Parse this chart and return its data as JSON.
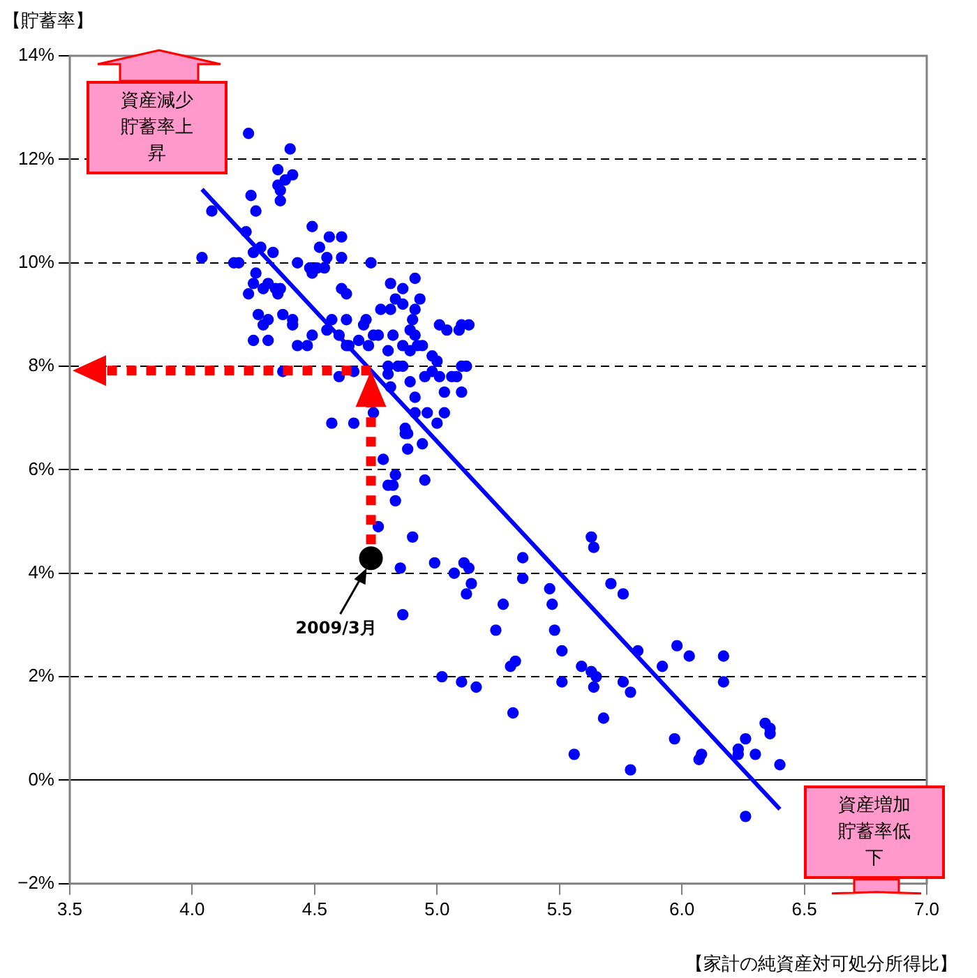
{
  "chart_data": {
    "type": "scatter",
    "xlabel": "【家計の純資産対可処分所得比】",
    "ylabel": "【貯蓄率】",
    "xlim": [
      3.5,
      7.0
    ],
    "xticks": [
      3.5,
      {
        "value": 4,
        "label": "4.0"
      },
      4.5,
      {
        "value": 5,
        "label": "5.0"
      },
      5.5,
      {
        "value": 6,
        "label": "6.0"
      },
      6.5,
      {
        "value": 7,
        "label": "7.0"
      }
    ],
    "ylim": [
      -2,
      14
    ],
    "yticks": [
      {
        "value": -2,
        "label": "−2%"
      },
      {
        "value": 0,
        "label": "0%"
      },
      {
        "value": 2,
        "label": "2%"
      },
      {
        "value": 4,
        "label": "4%"
      },
      {
        "value": 6,
        "label": "6%"
      },
      {
        "value": 8,
        "label": "8%"
      },
      {
        "value": 10,
        "label": "10%"
      },
      {
        "value": 12,
        "label": "12%"
      },
      {
        "value": 14,
        "label": "14%"
      }
    ],
    "grid": "y",
    "legend": false,
    "series": [
      {
        "marker": "circle",
        "color": "#0000ff",
        "x": [
          4.23,
          4.4,
          4.35,
          4.41,
          4.38,
          4.35,
          4.36,
          4.36,
          4.24,
          4.08,
          4.26,
          4.22,
          4.49,
          4.28,
          4.25,
          4.33,
          4.52,
          4.56,
          4.61,
          4.55,
          4.61,
          4.04,
          4.17,
          4.19,
          4.43,
          4.73,
          4.26,
          4.25,
          4.48,
          4.51,
          4.49,
          4.54,
          4.31,
          4.29,
          4.23,
          4.34,
          4.36,
          4.35,
          4.61,
          4.63,
          4.81,
          4.91,
          4.86,
          4.83,
          4.86,
          4.93,
          4.77,
          4.81,
          4.91,
          4.27,
          4.37,
          4.31,
          4.29,
          4.41,
          4.41,
          4.57,
          4.63,
          4.71,
          4.7,
          4.9,
          5.01,
          5.04,
          5.1,
          5.13,
          5.09,
          4.55,
          4.49,
          4.6,
          4.76,
          4.74,
          4.82,
          4.89,
          4.91,
          4.25,
          4.31,
          4.43,
          4.47,
          4.63,
          4.68,
          4.72,
          4.64,
          4.92,
          4.94,
          4.86,
          4.89,
          4.8,
          4.98,
          5.0,
          4.8,
          4.84,
          4.86,
          5.1,
          5.12,
          4.37,
          4.6,
          4.66,
          4.8,
          4.89,
          4.98,
          5.01,
          5.06,
          5.08,
          4.95,
          5.03,
          5.1,
          4.91,
          4.81,
          4.96,
          5.03,
          5.0,
          4.57,
          4.66,
          4.74,
          4.91,
          4.87,
          4.88,
          4.87,
          4.88,
          4.94,
          4.78,
          4.83,
          4.82,
          4.8,
          4.83,
          4.95,
          4.76,
          4.9,
          4.85,
          4.99,
          5.07,
          5.11,
          5.13,
          5.14,
          5.12,
          4.86,
          5.27,
          5.24,
          5.35,
          5.35,
          5.46,
          5.47,
          5.48,
          5.51,
          5.63,
          5.64,
          5.71,
          5.76,
          5.02,
          5.1,
          5.16,
          5.32,
          5.3,
          5.59,
          5.63,
          5.65,
          5.51,
          5.64,
          5.31,
          5.68,
          5.76,
          5.79,
          5.82,
          5.92,
          5.98,
          6.03,
          6.17,
          6.17,
          5.97,
          6.07,
          6.08,
          6.23,
          6.23,
          6.26,
          6.3,
          6.34,
          6.36,
          6.36,
          6.4,
          5.56,
          5.79,
          6.26
        ],
        "values": [
          12.5,
          12.2,
          11.8,
          11.7,
          11.6,
          11.5,
          11.4,
          11.2,
          11.3,
          11.0,
          11.0,
          10.6,
          10.7,
          10.3,
          10.2,
          10.2,
          10.3,
          10.5,
          10.5,
          10.1,
          10.1,
          10.1,
          10.0,
          10.0,
          10.0,
          10.0,
          9.8,
          9.6,
          9.9,
          9.9,
          9.8,
          9.9,
          9.6,
          9.5,
          9.4,
          9.5,
          9.5,
          9.4,
          9.5,
          9.4,
          9.6,
          9.7,
          9.5,
          9.3,
          9.2,
          9.3,
          9.1,
          9.1,
          9.1,
          9.0,
          9.0,
          8.9,
          8.8,
          8.9,
          8.8,
          8.9,
          8.9,
          8.9,
          8.8,
          8.9,
          8.8,
          8.7,
          8.8,
          8.8,
          8.7,
          8.7,
          8.6,
          8.6,
          8.6,
          8.6,
          8.6,
          8.7,
          8.6,
          8.5,
          8.5,
          8.4,
          8.4,
          8.4,
          8.5,
          8.4,
          8.4,
          8.4,
          8.4,
          8.4,
          8.3,
          8.3,
          8.2,
          8.1,
          8.0,
          8.0,
          8.0,
          8.0,
          8.0,
          7.9,
          7.8,
          7.9,
          7.85,
          7.7,
          7.9,
          7.8,
          7.8,
          7.8,
          7.8,
          7.5,
          7.5,
          7.4,
          7.6,
          7.1,
          7.1,
          6.9,
          6.9,
          6.9,
          7.1,
          7.1,
          6.8,
          6.7,
          6.7,
          6.4,
          6.5,
          6.2,
          5.9,
          5.7,
          5.7,
          5.4,
          5.8,
          4.9,
          4.7,
          4.1,
          4.2,
          4.0,
          4.2,
          4.1,
          3.8,
          3.6,
          3.2,
          3.4,
          2.9,
          4.3,
          3.9,
          3.7,
          3.4,
          2.9,
          2.5,
          4.7,
          4.5,
          3.8,
          3.6,
          2.0,
          1.9,
          1.8,
          2.3,
          2.2,
          2.2,
          2.1,
          2.0,
          1.9,
          1.8,
          1.3,
          1.2,
          1.9,
          1.7,
          2.5,
          2.2,
          2.6,
          2.4,
          2.4,
          1.9,
          0.8,
          0.4,
          0.5,
          0.6,
          0.5,
          0.8,
          0.5,
          1.1,
          1.0,
          0.9,
          0.3,
          0.5,
          0.2,
          -0.7
        ]
      },
      {
        "type": "line",
        "color": "#0000ff",
        "x": [
          4.04,
          6.4
        ],
        "values": [
          11.42,
          -0.56
        ]
      },
      {
        "marker": "circle",
        "color": "#000000",
        "x": [
          4.73
        ],
        "values": [
          4.29
        ]
      }
    ],
    "annotations": [
      "資産減少貯蓄率上昇",
      "資産増加貯蓄率低下",
      "2009/3月"
    ]
  }
}
